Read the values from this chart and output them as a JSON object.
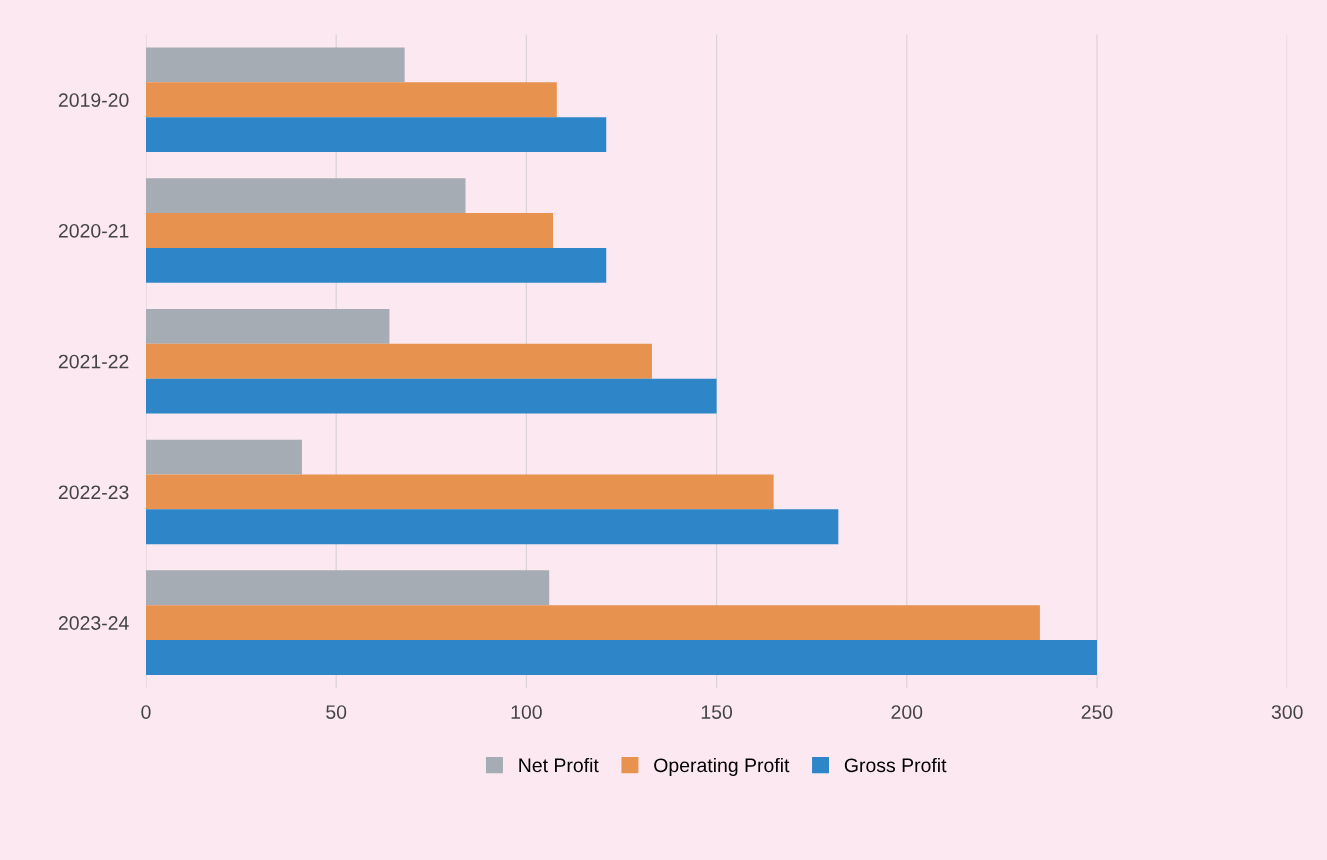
{
  "chart_data": {
    "type": "bar",
    "orientation": "horizontal",
    "categories": [
      "2019-20",
      "2020-21",
      "2021-22",
      "2022-23",
      "2023-24"
    ],
    "series": [
      {
        "name": "Net Profit",
        "color": "#a5acb3",
        "values": [
          68,
          84,
          64,
          41,
          106
        ]
      },
      {
        "name": "Operating Profit",
        "color": "#e8924f",
        "values": [
          108,
          107,
          133,
          165,
          235
        ]
      },
      {
        "name": "Gross Profit",
        "color": "#2e86c8",
        "values": [
          121,
          121,
          150,
          182,
          250
        ]
      }
    ],
    "xlim": [
      0,
      300
    ],
    "xticks": [
      0,
      50,
      100,
      150,
      200,
      250,
      300
    ],
    "grid": "x",
    "legend": "bottom"
  }
}
